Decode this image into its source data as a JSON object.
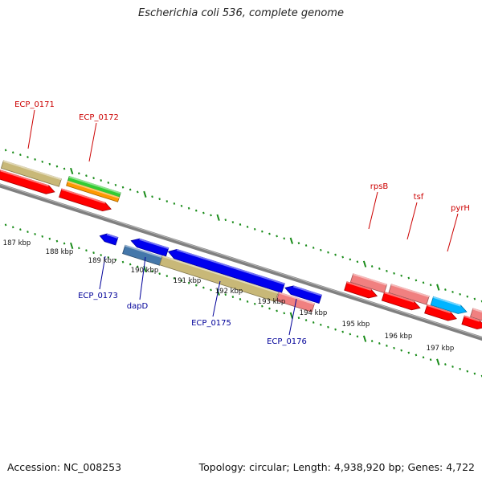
{
  "title": "Escherichia coli 536, complete genome",
  "footer": {
    "accession": "Accession: NC_008253",
    "summary": "Topology: circular; Length: 4,938,920 bp; Genes: 4,722"
  },
  "colors": {
    "backbone": "#808080",
    "tick": "#1a8c1a",
    "label_forward": "#cc0000",
    "label_reverse": "#000099",
    "tan": "#c8b878",
    "red": "#ff0000",
    "green": "#33cc33",
    "orange": "#ff9900",
    "blue": "#0000ee",
    "steelblue": "#4477aa",
    "pink": "#f08080",
    "cyan": "#00b4ff"
  },
  "scale_labels": [
    "187 kbp",
    "188 kbp",
    "189 kbp",
    "190 kbp",
    "191 kbp",
    "192 kbp",
    "193 kbp",
    "194 kbp",
    "195 kbp",
    "196 kbp",
    "197 kbp"
  ],
  "gene_labels": {
    "forward": [
      "ECP_0171",
      "ECP_0172",
      "rpsB",
      "tsf",
      "pyrH"
    ],
    "reverse": [
      "ECP_0173",
      "dapD",
      "ECP_0175",
      "ECP_0176"
    ]
  }
}
